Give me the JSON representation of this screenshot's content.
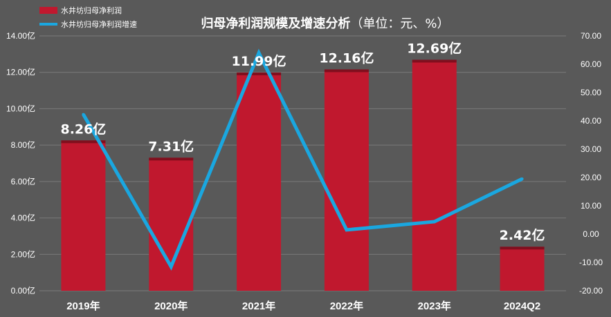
{
  "chart_data": {
    "type": "bar",
    "title": "归母净利润规模及增速分析",
    "title_unit": "（单位：元、%）",
    "categories": [
      "2019年",
      "2020年",
      "2021年",
      "2022年",
      "2023年",
      "2024Q2"
    ],
    "series": [
      {
        "name": "水井坊归母净利润",
        "type": "bar",
        "axis": "left",
        "color": "#c0182e",
        "values": [
          8.26,
          7.31,
          11.99,
          12.16,
          12.69,
          2.42
        ],
        "data_labels": [
          "8.26亿",
          "7.31亿",
          "11.99亿",
          "12.16亿",
          "12.69亿",
          "2.42亿"
        ]
      },
      {
        "name": "水井坊归母净利润增速",
        "type": "line",
        "axis": "right",
        "color": "#1aa7e0",
        "values": [
          42.3,
          -11.5,
          64.0,
          1.5,
          4.4,
          19.5
        ]
      }
    ],
    "y_left": {
      "ylim": [
        0,
        14
      ],
      "ticks": [
        "0.00亿",
        "2.00亿",
        "4.00亿",
        "6.00亿",
        "8.00亿",
        "10.00亿",
        "12.00亿",
        "14.00亿"
      ]
    },
    "y_right": {
      "ylim": [
        -20,
        70
      ],
      "ticks": [
        "-20.00",
        "-10.00",
        "0.00",
        "10.00",
        "20.00",
        "30.00",
        "40.00",
        "50.00",
        "60.00",
        "70.00"
      ]
    },
    "grid": true,
    "legend_position": "top-left",
    "background_color": "#595959"
  }
}
